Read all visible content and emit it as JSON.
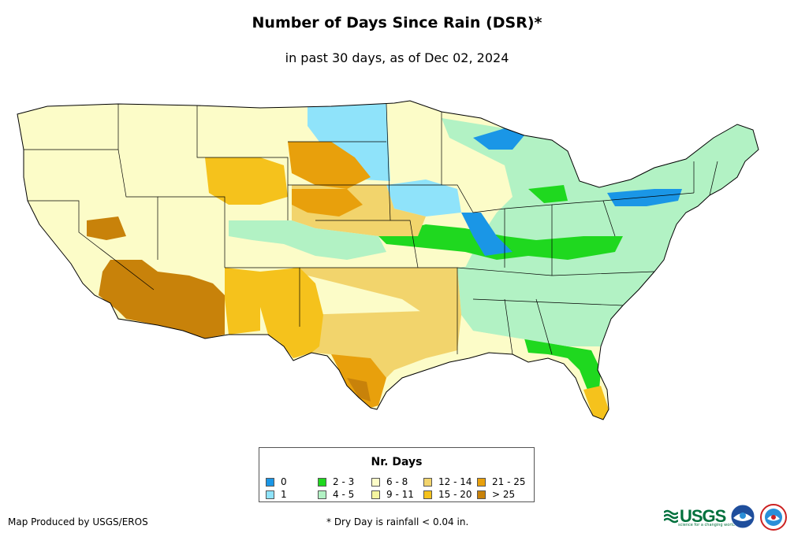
{
  "header": {
    "title": "Number of Days Since Rain (DSR)*",
    "subtitle": "in past 30 days, as of Dec 02, 2024"
  },
  "legend": {
    "title": "Nr. Days",
    "items": [
      {
        "label": "0",
        "color": "#1a96e6"
      },
      {
        "label": "1",
        "color": "#8fe3fa"
      },
      {
        "label": "2 - 3",
        "color": "#1fd81f"
      },
      {
        "label": "4 - 5",
        "color": "#b2f2c4"
      },
      {
        "label": "6 - 8",
        "color": "#fcfcc8"
      },
      {
        "label": "9 - 11",
        "color": "#f5f5a0"
      },
      {
        "label": "12 - 14",
        "color": "#f2d46c"
      },
      {
        "label": "15 - 20",
        "color": "#f5c21c"
      },
      {
        "label": "21 - 25",
        "color": "#e8a00c"
      },
      {
        "label": "> 25",
        "color": "#c8820a"
      }
    ]
  },
  "footer": {
    "credit": "Map Produced by USGS/EROS",
    "note": "* Dry Day is rainfall < 0.04 in."
  },
  "logos": {
    "usgs": "USGS",
    "usgs_tagline": "science for a changing world",
    "noaa": "NOAA",
    "nws": "NWS"
  }
}
